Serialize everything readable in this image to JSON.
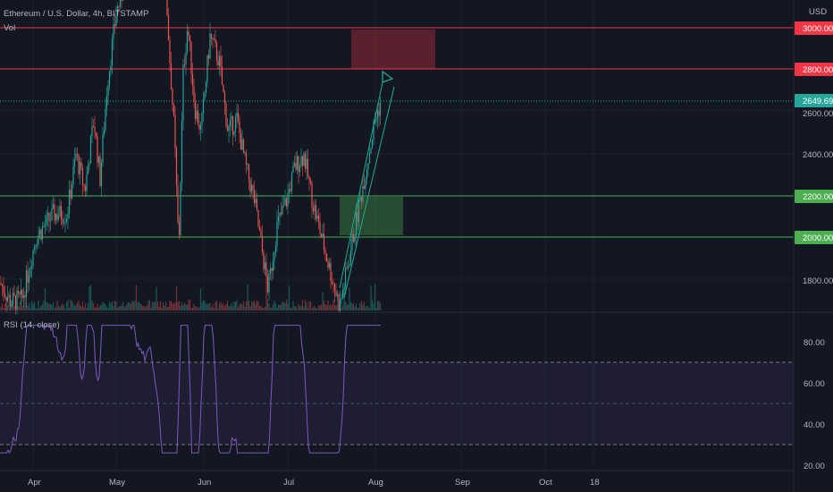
{
  "header": {
    "symbol_line": "Ethereum / U.S. Dollar, 4h, BITSTAMP",
    "volume_label": "Vol",
    "currency": "USD"
  },
  "price_axis": {
    "ticks": [
      "2600.00",
      "2400.00",
      "1800.00"
    ],
    "min": 1735,
    "max": 3055
  },
  "price_badges": [
    {
      "name": "level-3000",
      "label": "3000.00",
      "value": 3000,
      "color": "#f23645"
    },
    {
      "name": "level-2800",
      "label": "2800.00",
      "value": 2800,
      "color": "#f23645"
    },
    {
      "name": "last-price",
      "label": "2649.69",
      "value": 2649.69,
      "color": "#26a69a"
    },
    {
      "name": "level-2200",
      "label": "2200.00",
      "value": 2200,
      "color": "#4caf50"
    },
    {
      "name": "level-2000",
      "label": "2000.00",
      "value": 2000,
      "color": "#4caf50"
    }
  ],
  "rsi_panel": {
    "label": "RSI (14, close)",
    "ticks": [
      "80.00",
      "60.00",
      "40.00",
      "20.00"
    ],
    "upper_band": 70,
    "mid_band": 50,
    "lower_band": 30
  },
  "time_axis": {
    "labels": [
      "Apr",
      "May",
      "Jun",
      "Jul",
      "Aug",
      "Sep",
      "Oct",
      "18"
    ]
  },
  "colors": {
    "background": "#131722",
    "candle_up": "#26a69a",
    "candle_down": "#ef5350",
    "rsi_line": "#7e57c2",
    "resistance": "#f23645",
    "support": "#4caf50"
  }
}
